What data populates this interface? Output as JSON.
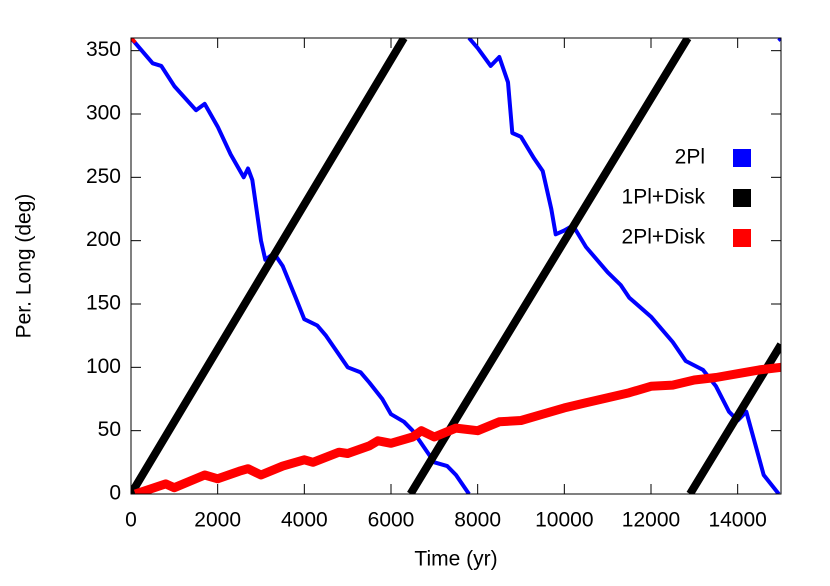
{
  "chart_data": {
    "type": "line",
    "xlabel": "Time (yr)",
    "ylabel": "Per. Long (deg)",
    "xlim": [
      0,
      15000
    ],
    "ylim": [
      0,
      360
    ],
    "xticks": [
      0,
      2000,
      4000,
      6000,
      8000,
      10000,
      12000,
      14000
    ],
    "yticks": [
      0,
      50,
      100,
      150,
      200,
      250,
      300,
      350
    ],
    "legend": "right",
    "series": [
      {
        "name": "2Pl",
        "color": "#0000ff",
        "width": 4,
        "x": [
          0,
          500,
          700,
          1000,
          1500,
          1700,
          2000,
          2300,
          2600,
          2700,
          2800,
          3000,
          3100,
          3300,
          3500,
          3800,
          4000,
          4300,
          4500,
          5000,
          5300,
          5500,
          5800,
          6000,
          6300,
          6500,
          6800,
          7000,
          7300,
          7500,
          7800,
          null,
          7800,
          8000,
          8300,
          8500,
          8700,
          8800,
          9000,
          9300,
          9500,
          9700,
          9800,
          10000,
          10200,
          10500,
          11000,
          11300,
          11500,
          12000,
          12500,
          12800,
          13200,
          13500,
          13800,
          14000,
          14200,
          14400,
          14600,
          14950,
          null,
          14950,
          15000
        ],
        "values": [
          360,
          340,
          338,
          322,
          303,
          308,
          290,
          268,
          250,
          257,
          248,
          200,
          185,
          190,
          180,
          155,
          138,
          133,
          125,
          100,
          96,
          88,
          75,
          63,
          57,
          50,
          35,
          25,
          22,
          15,
          0,
          null,
          360,
          352,
          338,
          345,
          325,
          285,
          282,
          265,
          255,
          225,
          205,
          208,
          212,
          195,
          175,
          165,
          155,
          140,
          120,
          105,
          98,
          85,
          65,
          58,
          65,
          40,
          15,
          0,
          null,
          360,
          358
        ]
      },
      {
        "name": "1Pl+Disk",
        "color": "#000000",
        "width": 8,
        "x": [
          0,
          6300,
          null,
          6450,
          12850,
          null,
          12900,
          15000
        ],
        "values": [
          0,
          360,
          null,
          0,
          360,
          null,
          0,
          118
        ]
      },
      {
        "name": "2Pl+Disk",
        "color": "#ff0000",
        "width": 9,
        "x": [
          0,
          60,
          null,
          100,
          800,
          1000,
          1700,
          2000,
          2500,
          2700,
          3000,
          3500,
          4000,
          4200,
          4800,
          5000,
          5500,
          5700,
          6000,
          6500,
          6700,
          7000,
          7500,
          8000,
          8500,
          9000,
          9500,
          10000,
          10500,
          11000,
          11500,
          12000,
          12500,
          13000,
          13500,
          14000,
          14500,
          15000
        ],
        "values": [
          358,
          360,
          null,
          0,
          8,
          5,
          15,
          12,
          18,
          20,
          15,
          22,
          27,
          25,
          33,
          32,
          38,
          42,
          40,
          45,
          50,
          45,
          52,
          50,
          57,
          58,
          63,
          68,
          72,
          76,
          80,
          85,
          86,
          90,
          92,
          95,
          98,
          100
        ]
      }
    ]
  }
}
